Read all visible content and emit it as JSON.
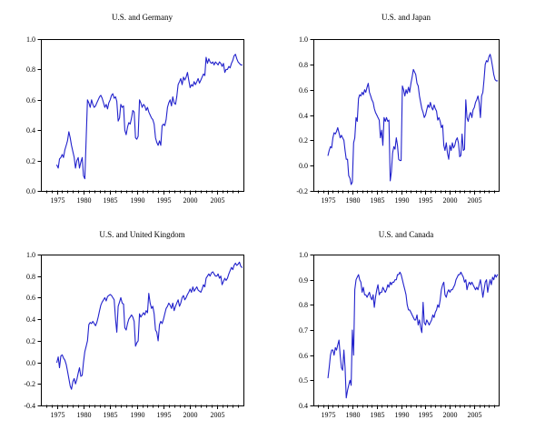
{
  "page": {
    "background": "#ffffff",
    "text_color": "#000000",
    "axis_color": "#000000",
    "line_color": "#2222cc"
  },
  "chart_data": [
    {
      "type": "line",
      "title": "U.S. and Germany",
      "line_color": "#2222cc",
      "x_start": 1975.0,
      "x_step": 0.25,
      "xlim": [
        1972,
        2010
      ],
      "ylim": [
        0.0,
        1.0
      ],
      "y_ticks": [
        0.0,
        0.2,
        0.4,
        0.6,
        0.8,
        1.0
      ],
      "x_tick_labels": [
        1975,
        1980,
        1985,
        1990,
        1995,
        2000,
        2005
      ],
      "x_minor_tick_step": 1,
      "grid": false,
      "legend": "none",
      "values": [
        0.17,
        0.15,
        0.21,
        0.22,
        0.24,
        0.22,
        0.27,
        0.3,
        0.33,
        0.39,
        0.35,
        0.3,
        0.26,
        0.22,
        0.15,
        0.2,
        0.22,
        0.15,
        0.19,
        0.22,
        0.1,
        0.08,
        0.35,
        0.6,
        0.58,
        0.55,
        0.6,
        0.57,
        0.55,
        0.56,
        0.58,
        0.6,
        0.62,
        0.63,
        0.61,
        0.58,
        0.55,
        0.57,
        0.54,
        0.58,
        0.6,
        0.63,
        0.64,
        0.61,
        0.62,
        0.59,
        0.46,
        0.48,
        0.57,
        0.55,
        0.56,
        0.4,
        0.37,
        0.42,
        0.45,
        0.44,
        0.48,
        0.53,
        0.52,
        0.35,
        0.34,
        0.36,
        0.6,
        0.58,
        0.55,
        0.57,
        0.56,
        0.53,
        0.55,
        0.52,
        0.5,
        0.48,
        0.47,
        0.44,
        0.35,
        0.32,
        0.3,
        0.33,
        0.3,
        0.43,
        0.44,
        0.43,
        0.47,
        0.55,
        0.58,
        0.6,
        0.56,
        0.62,
        0.58,
        0.57,
        0.62,
        0.7,
        0.72,
        0.74,
        0.7,
        0.75,
        0.73,
        0.75,
        0.78,
        0.73,
        0.68,
        0.7,
        0.69,
        0.72,
        0.7,
        0.72,
        0.74,
        0.71,
        0.73,
        0.75,
        0.77,
        0.76,
        0.88,
        0.84,
        0.87,
        0.85,
        0.84,
        0.85,
        0.83,
        0.85,
        0.84,
        0.83,
        0.85,
        0.84,
        0.82,
        0.84,
        0.78,
        0.8,
        0.8,
        0.82,
        0.81,
        0.84,
        0.86,
        0.89,
        0.9,
        0.87,
        0.85,
        0.84,
        0.83,
        0.83
      ]
    },
    {
      "type": "line",
      "title": "U.S. and Japan",
      "line_color": "#2222cc",
      "x_start": 1975.0,
      "x_step": 0.25,
      "xlim": [
        1972,
        2010
      ],
      "ylim": [
        -0.2,
        1.0
      ],
      "y_ticks": [
        -0.2,
        0.0,
        0.2,
        0.4,
        0.6,
        0.8,
        1.0
      ],
      "x_tick_labels": [
        1975,
        1980,
        1985,
        1990,
        1995,
        2000,
        2005
      ],
      "x_minor_tick_step": 1,
      "grid": false,
      "legend": "none",
      "values": [
        0.08,
        0.12,
        0.15,
        0.14,
        0.22,
        0.26,
        0.25,
        0.27,
        0.3,
        0.26,
        0.22,
        0.24,
        0.22,
        0.2,
        0.12,
        0.05,
        0.05,
        -0.08,
        -0.1,
        -0.15,
        -0.13,
        0.18,
        0.22,
        0.38,
        0.35,
        0.53,
        0.56,
        0.55,
        0.58,
        0.56,
        0.6,
        0.58,
        0.62,
        0.65,
        0.58,
        0.55,
        0.52,
        0.5,
        0.45,
        0.42,
        0.4,
        0.38,
        0.36,
        0.22,
        0.28,
        0.16,
        0.38,
        0.35,
        0.38,
        0.35,
        0.36,
        -0.12,
        -0.05,
        0.1,
        0.15,
        0.13,
        0.22,
        0.16,
        0.05,
        0.04,
        0.04,
        0.63,
        0.6,
        0.55,
        0.6,
        0.57,
        0.62,
        0.58,
        0.65,
        0.7,
        0.76,
        0.74,
        0.72,
        0.65,
        0.63,
        0.55,
        0.5,
        0.45,
        0.42,
        0.38,
        0.4,
        0.44,
        0.48,
        0.46,
        0.5,
        0.46,
        0.44,
        0.48,
        0.45,
        0.43,
        0.36,
        0.38,
        0.35,
        0.3,
        0.32,
        0.16,
        0.12,
        0.18,
        0.1,
        0.05,
        0.16,
        0.12,
        0.18,
        0.14,
        0.16,
        0.2,
        0.22,
        0.18,
        0.07,
        0.08,
        0.25,
        0.12,
        0.13,
        0.52,
        0.38,
        0.35,
        0.4,
        0.42,
        0.38,
        0.44,
        0.46,
        0.5,
        0.52,
        0.55,
        0.5,
        0.38,
        0.55,
        0.58,
        0.68,
        0.8,
        0.83,
        0.82,
        0.86,
        0.88,
        0.84,
        0.78,
        0.72,
        0.68,
        0.67,
        0.67
      ]
    },
    {
      "type": "line",
      "title": "U.S. and United Kingdom",
      "line_color": "#2222cc",
      "x_start": 1975.0,
      "x_step": 0.25,
      "xlim": [
        1972,
        2010
      ],
      "ylim": [
        -0.4,
        1.0
      ],
      "y_ticks": [
        -0.4,
        -0.2,
        0.0,
        0.2,
        0.4,
        0.6,
        0.8,
        1.0
      ],
      "x_tick_labels": [
        1975,
        1980,
        1985,
        1990,
        1995,
        2000,
        2005
      ],
      "x_minor_tick_step": 1,
      "grid": false,
      "legend": "none",
      "values": [
        0.0,
        0.05,
        -0.05,
        0.06,
        0.07,
        0.04,
        0.02,
        -0.02,
        -0.08,
        -0.15,
        -0.22,
        -0.25,
        -0.18,
        -0.15,
        -0.2,
        -0.16,
        -0.1,
        -0.05,
        -0.13,
        -0.12,
        0.0,
        0.1,
        0.15,
        0.2,
        0.35,
        0.37,
        0.36,
        0.38,
        0.36,
        0.34,
        0.37,
        0.42,
        0.48,
        0.53,
        0.56,
        0.58,
        0.6,
        0.57,
        0.61,
        0.62,
        0.63,
        0.62,
        0.6,
        0.58,
        0.4,
        0.28,
        0.52,
        0.56,
        0.6,
        0.55,
        0.54,
        0.32,
        0.3,
        0.36,
        0.4,
        0.42,
        0.44,
        0.42,
        0.38,
        0.15,
        0.18,
        0.2,
        0.45,
        0.42,
        0.44,
        0.46,
        0.44,
        0.48,
        0.46,
        0.64,
        0.55,
        0.5,
        0.52,
        0.45,
        0.3,
        0.28,
        0.2,
        0.35,
        0.38,
        0.36,
        0.4,
        0.45,
        0.5,
        0.52,
        0.55,
        0.53,
        0.5,
        0.55,
        0.48,
        0.52,
        0.55,
        0.58,
        0.52,
        0.55,
        0.6,
        0.62,
        0.58,
        0.6,
        0.63,
        0.65,
        0.68,
        0.65,
        0.7,
        0.66,
        0.68,
        0.7,
        0.67,
        0.66,
        0.65,
        0.68,
        0.72,
        0.7,
        0.78,
        0.8,
        0.82,
        0.8,
        0.83,
        0.84,
        0.82,
        0.8,
        0.8,
        0.82,
        0.78,
        0.8,
        0.72,
        0.75,
        0.78,
        0.76,
        0.78,
        0.82,
        0.85,
        0.88,
        0.86,
        0.9,
        0.92,
        0.9,
        0.91,
        0.93,
        0.89,
        0.88
      ]
    },
    {
      "type": "line",
      "title": "U.S. and Canada",
      "line_color": "#2222cc",
      "x_start": 1975.0,
      "x_step": 0.25,
      "xlim": [
        1972,
        2010
      ],
      "ylim": [
        0.4,
        1.0
      ],
      "y_ticks": [
        0.4,
        0.5,
        0.6,
        0.7,
        0.8,
        0.9,
        1.0
      ],
      "x_tick_labels": [
        1975,
        1980,
        1985,
        1990,
        1995,
        2000,
        2005
      ],
      "x_minor_tick_step": 1,
      "grid": false,
      "legend": "none",
      "values": [
        0.51,
        0.55,
        0.6,
        0.62,
        0.62,
        0.6,
        0.63,
        0.62,
        0.64,
        0.66,
        0.6,
        0.55,
        0.54,
        0.62,
        0.55,
        0.43,
        0.46,
        0.48,
        0.5,
        0.48,
        0.7,
        0.6,
        0.86,
        0.9,
        0.91,
        0.92,
        0.9,
        0.89,
        0.85,
        0.87,
        0.84,
        0.84,
        0.83,
        0.84,
        0.85,
        0.83,
        0.82,
        0.84,
        0.79,
        0.83,
        0.86,
        0.88,
        0.84,
        0.85,
        0.85,
        0.87,
        0.86,
        0.85,
        0.86,
        0.88,
        0.87,
        0.89,
        0.88,
        0.89,
        0.89,
        0.9,
        0.9,
        0.92,
        0.92,
        0.93,
        0.92,
        0.9,
        0.88,
        0.86,
        0.84,
        0.8,
        0.78,
        0.78,
        0.77,
        0.76,
        0.75,
        0.74,
        0.74,
        0.76,
        0.72,
        0.74,
        0.71,
        0.69,
        0.81,
        0.73,
        0.72,
        0.74,
        0.73,
        0.72,
        0.73,
        0.74,
        0.76,
        0.75,
        0.77,
        0.78,
        0.8,
        0.79,
        0.82,
        0.86,
        0.88,
        0.89,
        0.84,
        0.83,
        0.85,
        0.86,
        0.85,
        0.86,
        0.86,
        0.87,
        0.88,
        0.9,
        0.91,
        0.92,
        0.92,
        0.93,
        0.92,
        0.91,
        0.89,
        0.9,
        0.86,
        0.88,
        0.89,
        0.88,
        0.89,
        0.88,
        0.87,
        0.86,
        0.87,
        0.86,
        0.88,
        0.9,
        0.87,
        0.83,
        0.86,
        0.89,
        0.9,
        0.85,
        0.88,
        0.9,
        0.88,
        0.91,
        0.9,
        0.92,
        0.91,
        0.92
      ]
    }
  ]
}
